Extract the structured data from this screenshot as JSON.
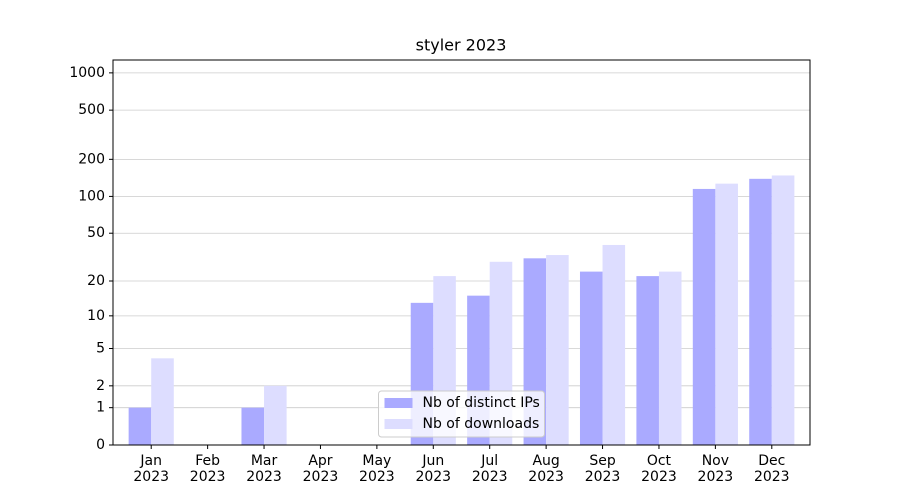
{
  "chart_data": {
    "type": "bar",
    "title": "styler 2023",
    "categories": [
      "Jan\n2023",
      "Feb\n2023",
      "Mar\n2023",
      "Apr\n2023",
      "May\n2023",
      "Jun\n2023",
      "Jul\n2023",
      "Aug\n2023",
      "Sep\n2023",
      "Oct\n2023",
      "Nov\n2023",
      "Dec\n2023"
    ],
    "series": [
      {
        "name": "Nb of distinct IPs",
        "color": "#aaaaff",
        "values": [
          1,
          0,
          1,
          0,
          0,
          13,
          15,
          31,
          24,
          22,
          115,
          139
        ]
      },
      {
        "name": "Nb of downloads",
        "color": "#ddddff",
        "values": [
          4,
          0,
          2,
          0,
          0,
          22,
          29,
          33,
          40,
          24,
          127,
          148
        ]
      }
    ],
    "yscale": "log1p",
    "ylim": [
      0,
      1270
    ],
    "yticks": [
      0,
      1,
      2,
      5,
      10,
      20,
      50,
      100,
      200,
      500,
      1000
    ],
    "grid": true,
    "legend": "lower center"
  }
}
